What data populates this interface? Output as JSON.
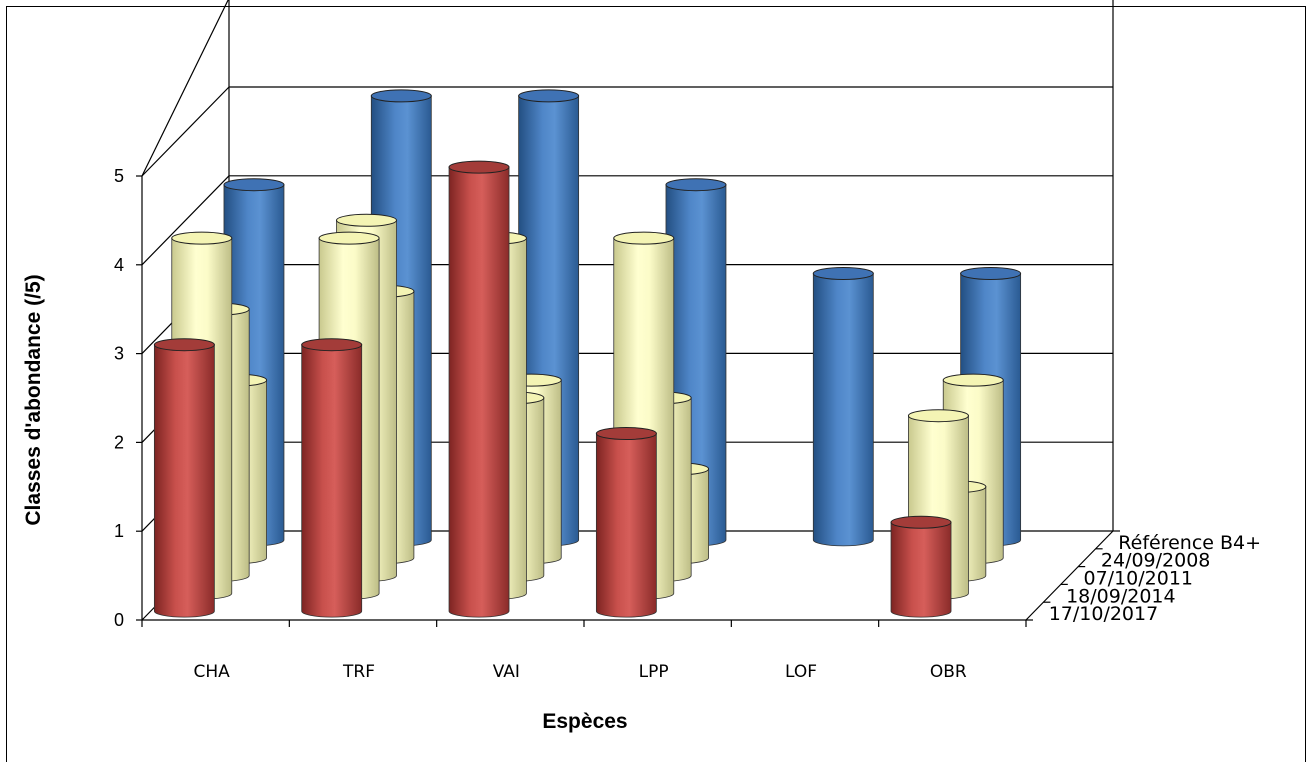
{
  "chart_data": {
    "type": "bar",
    "title": "",
    "xlabel": "Espèces",
    "ylabel": "Classes d'abondance  (/5)",
    "ylim": [
      0,
      5
    ],
    "yticks": [
      "0",
      "1",
      "2",
      "3",
      "4",
      "5"
    ],
    "categories": [
      "CHA",
      "TRF",
      "VAI",
      "LPP",
      "LOF",
      "OBR"
    ],
    "series": [
      {
        "name": "17/10/2017",
        "color": "#c0504d",
        "values": [
          3,
          3,
          5,
          2,
          0,
          1
        ]
      },
      {
        "name": "18/09/2014",
        "color": "#ffffc0",
        "values": [
          4,
          4,
          4,
          4,
          0,
          2
        ]
      },
      {
        "name": "07/10/2011",
        "color": "#ffffc0",
        "values": [
          3,
          4,
          2,
          2,
          0,
          1
        ]
      },
      {
        "name": "24/09/2008",
        "color": "#ffffc0",
        "values": [
          2,
          3,
          2,
          1,
          0,
          2
        ]
      },
      {
        "name": "Référence B4+",
        "color": "#4f81bd",
        "values": [
          4,
          5,
          5,
          4,
          3,
          3
        ]
      }
    ],
    "grid": true,
    "legend": "depth-axis-right"
  }
}
